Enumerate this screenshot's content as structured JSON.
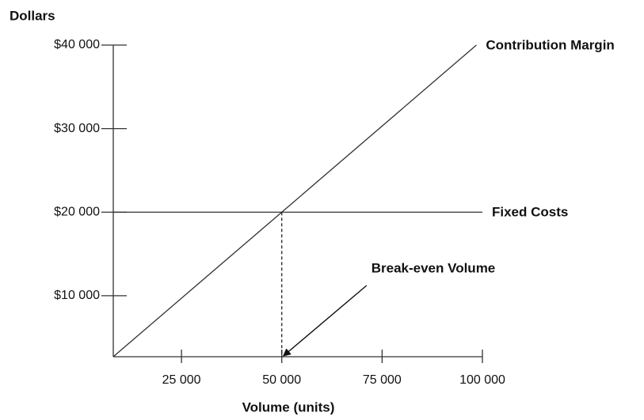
{
  "chart_data": {
    "type": "line",
    "y_label": "Dollars",
    "x_label": "Volume (units)",
    "series": [
      {
        "name": "Contribution Margin",
        "color": "#333333",
        "x": [
          8000,
          50000,
          98500
        ],
        "values": [
          2700,
          20000,
          40000
        ]
      },
      {
        "name": "Fixed Costs",
        "color": "#333333",
        "x": [
          8000,
          100000
        ],
        "values": [
          20000,
          20000
        ]
      }
    ],
    "break_even": {
      "label": "Break-even Volume",
      "x": 50000,
      "y": 20000
    },
    "xlim": [
      8000,
      100000
    ],
    "ylim": [
      2700,
      40000
    ],
    "xticks": [
      {
        "value": 25000,
        "label": "25 000"
      },
      {
        "value": 50000,
        "label": "50 000"
      },
      {
        "value": 75000,
        "label": "75 000"
      },
      {
        "value": 100000,
        "label": "100 000"
      }
    ],
    "yticks": [
      {
        "value": 10000,
        "label": "$10 000"
      },
      {
        "value": 20000,
        "label": "$20 000"
      },
      {
        "value": 30000,
        "label": "$30 000"
      },
      {
        "value": 40000,
        "label": "$40 000"
      }
    ]
  }
}
